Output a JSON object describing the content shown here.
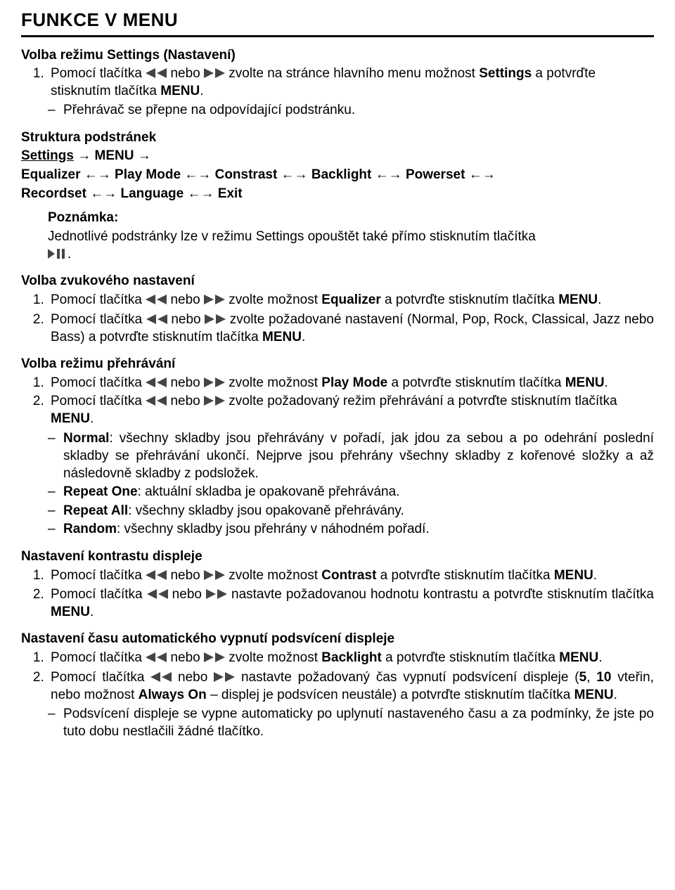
{
  "title": "FUNKCE V MENU",
  "icons": {
    "fill": "#444444",
    "rew_svg": "<svg width='30' height='14' viewBox='0 0 30 14'><polygon fill='#444' points='14,0 14,14 0,7'/><polygon fill='#444' points='30,0 30,14 16,7'/></svg>",
    "ff_svg": "<svg width='30' height='14' viewBox='0 0 30 14'><polygon fill='#444' points='0,0 14,7 0,14'/><polygon fill='#444' points='16,0 30,7 16,14'/></svg>",
    "play_svg": "<svg width='28' height='14' viewBox='0 0 28 14'><polygon fill='#444' points='0,0 10,7 0,14'/><rect fill='#444' x='13' y='0' width='4' height='14'/><rect fill='#444' x='20' y='0' width='4' height='14'/></svg>"
  },
  "s1": {
    "heading": "Volba režimu Settings (Nastavení)",
    "li1a": "Pomocí tlačítka ",
    "li1b": " nebo ",
    "li1c": " zvolte na stránce hlavního menu možnost ",
    "li1d": "Settings",
    "li1e": " a potvrďte stisknutím tlačítka ",
    "li1f": "MENU",
    "li1g": ".",
    "dash1": "Přehrávač se přepne na odpovídající podstránku."
  },
  "struct": {
    "h": "Struktura podstránek",
    "l1a": "Settings",
    "l1b": " → ",
    "l1c": "MENU",
    "l1d": " →",
    "l2a": "Equalizer",
    "l2b": " ←→ ",
    "l2c": "Play Mode",
    "l2d": " ←→ ",
    "l2e": "Constrast",
    "l2f": " ←→ ",
    "l2g": "Backlight",
    "l2h": " ←→ ",
    "l2i": "Powerset",
    "l2j": " ←→",
    "l3a": "Recordset",
    "l3b": " ←→ ",
    "l3c": "Language",
    "l3d": " ←→ ",
    "l3e": "Exit"
  },
  "note": {
    "h": "Poznámka:",
    "body": "Jednotlivé podstránky lze v režimu Settings opouštět také přímo stisknutím tlačítka ",
    "tail": "."
  },
  "s2": {
    "heading": "Volba zvukového nastavení",
    "li1a": "Pomocí tlačítka ",
    "li1b": " nebo ",
    "li1c": " zvolte možnost ",
    "li1d": "Equalizer",
    "li1e": " a potvrďte stisknutím tlačítka ",
    "li1f": "MENU",
    "li1g": ".",
    "li2a": "Pomocí tlačítka ",
    "li2b": " nebo ",
    "li2c": " zvolte požadované nastavení (Normal, Pop, Rock, Classical, Jazz nebo Bass) a potvrďte stisknutím tlačítka ",
    "li2d": "MENU",
    "li2e": "."
  },
  "s3": {
    "heading": "Volba režimu přehrávání",
    "li1a": "Pomocí tlačítka ",
    "li1b": " nebo ",
    "li1c": " zvolte možnost ",
    "li1d": "Play Mode",
    "li1e": " a potvrďte stisknutím tlačítka ",
    "li1f": "MENU",
    "li1g": ".",
    "li2a": "Pomocí tlačítka ",
    "li2b": " nebo ",
    "li2c": " zvolte požadovaný režim přehrávání a potvrďte stisknutím tlačítka ",
    "li2d": "MENU",
    "li2e": ".",
    "d1a": "Normal",
    "d1b": ": všechny skladby jsou přehrávány v pořadí, jak jdou za sebou a po odehrání poslední skladby se přehrávání ukončí. Nejprve jsou přehrány všechny skladby z kořenové složky a až následovně skladby z podsložek.",
    "d2a": "Repeat One",
    "d2b": ": aktuální skladba je opakovaně přehrávána.",
    "d3a": "Repeat All",
    "d3b": ": všechny skladby jsou opakovaně přehrávány.",
    "d4a": "Random",
    "d4b": ": všechny skladby jsou přehrány v náhodném pořadí."
  },
  "s4": {
    "heading": "Nastavení kontrastu displeje",
    "li1a": "Pomocí tlačítka ",
    "li1b": " nebo ",
    "li1c": " zvolte možnost ",
    "li1d": "Contrast",
    "li1e": " a potvrďte stisknutím tlačítka ",
    "li1f": "MENU",
    "li1g": ".",
    "li2a": "Pomocí tlačítka ",
    "li2b": " nebo ",
    "li2c": " nastavte požadovanou hodnotu kontrastu a potvrďte stisknutím tlačítka ",
    "li2d": "MENU",
    "li2e": "."
  },
  "s5": {
    "heading": "Nastavení času automatického vypnutí podsvícení displeje",
    "li1a": "Pomocí tlačítka ",
    "li1b": " nebo ",
    "li1c": " zvolte možnost ",
    "li1d": "Backlight",
    "li1e": " a potvrďte stisknutím tlačítka ",
    "li1f": "MENU",
    "li1g": ".",
    "li2a": "Pomocí tlačítka ",
    "li2b": " nebo ",
    "li2c": " nastavte požadovaný čas vypnutí podsvícení displeje (",
    "li2d": "5",
    "li2e": ", ",
    "li2f": "10",
    "li2g": " vteřin, nebo možnost ",
    "li2h": "Always On",
    "li2i": " – displej je podsvícen neustále) a potvrďte stisknutím tlačítka ",
    "li2j": "MENU",
    "li2k": ".",
    "d1": "Podsvícení displeje se vypne automaticky po uplynutí nastaveného času a za podmínky, že jste po tuto dobu nestlačili žádné tlačítko."
  }
}
